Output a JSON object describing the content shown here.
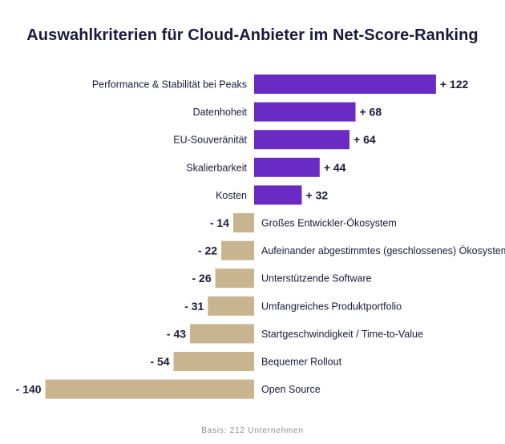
{
  "title": "Auswahlkriterien für Cloud-Anbieter im Net-Score-Ranking",
  "footnote": "Basis: 212 Unternehmen",
  "chart_data": {
    "type": "bar",
    "orientation": "horizontal",
    "title": "Auswahlkriterien für Cloud-Anbieter im Net-Score-Ranking",
    "xlabel": "",
    "ylabel": "",
    "grid": false,
    "legend": "none",
    "colors": {
      "positive": "#6a2bc4",
      "negative": "#c8b48e",
      "text": "#1b1a3a"
    },
    "categories": [
      "Performance & Stabilität bei Peaks",
      "Datenhoheit",
      "EU-Souveränität",
      "Skalierbarkeit",
      "Kosten",
      "Großes Entwickler-Ökosystem",
      "Aufeinander abgestimmtes (geschlossenes) Ökosystem",
      "Unterstützende Software",
      "Umfangreiches Produktportfolio",
      "Startgeschwindigkeit / Time-to-Value",
      "Bequemer Rollout",
      "Open Source"
    ],
    "values": [
      122,
      68,
      64,
      44,
      32,
      -14,
      -22,
      -26,
      -31,
      -43,
      -54,
      -140
    ],
    "value_labels": [
      "+ 122",
      "+ 68",
      "+ 64",
      "+ 44",
      "+ 32",
      "- 14",
      "- 22",
      "- 26",
      "- 31",
      "- 43",
      "- 54",
      "- 140"
    ]
  }
}
